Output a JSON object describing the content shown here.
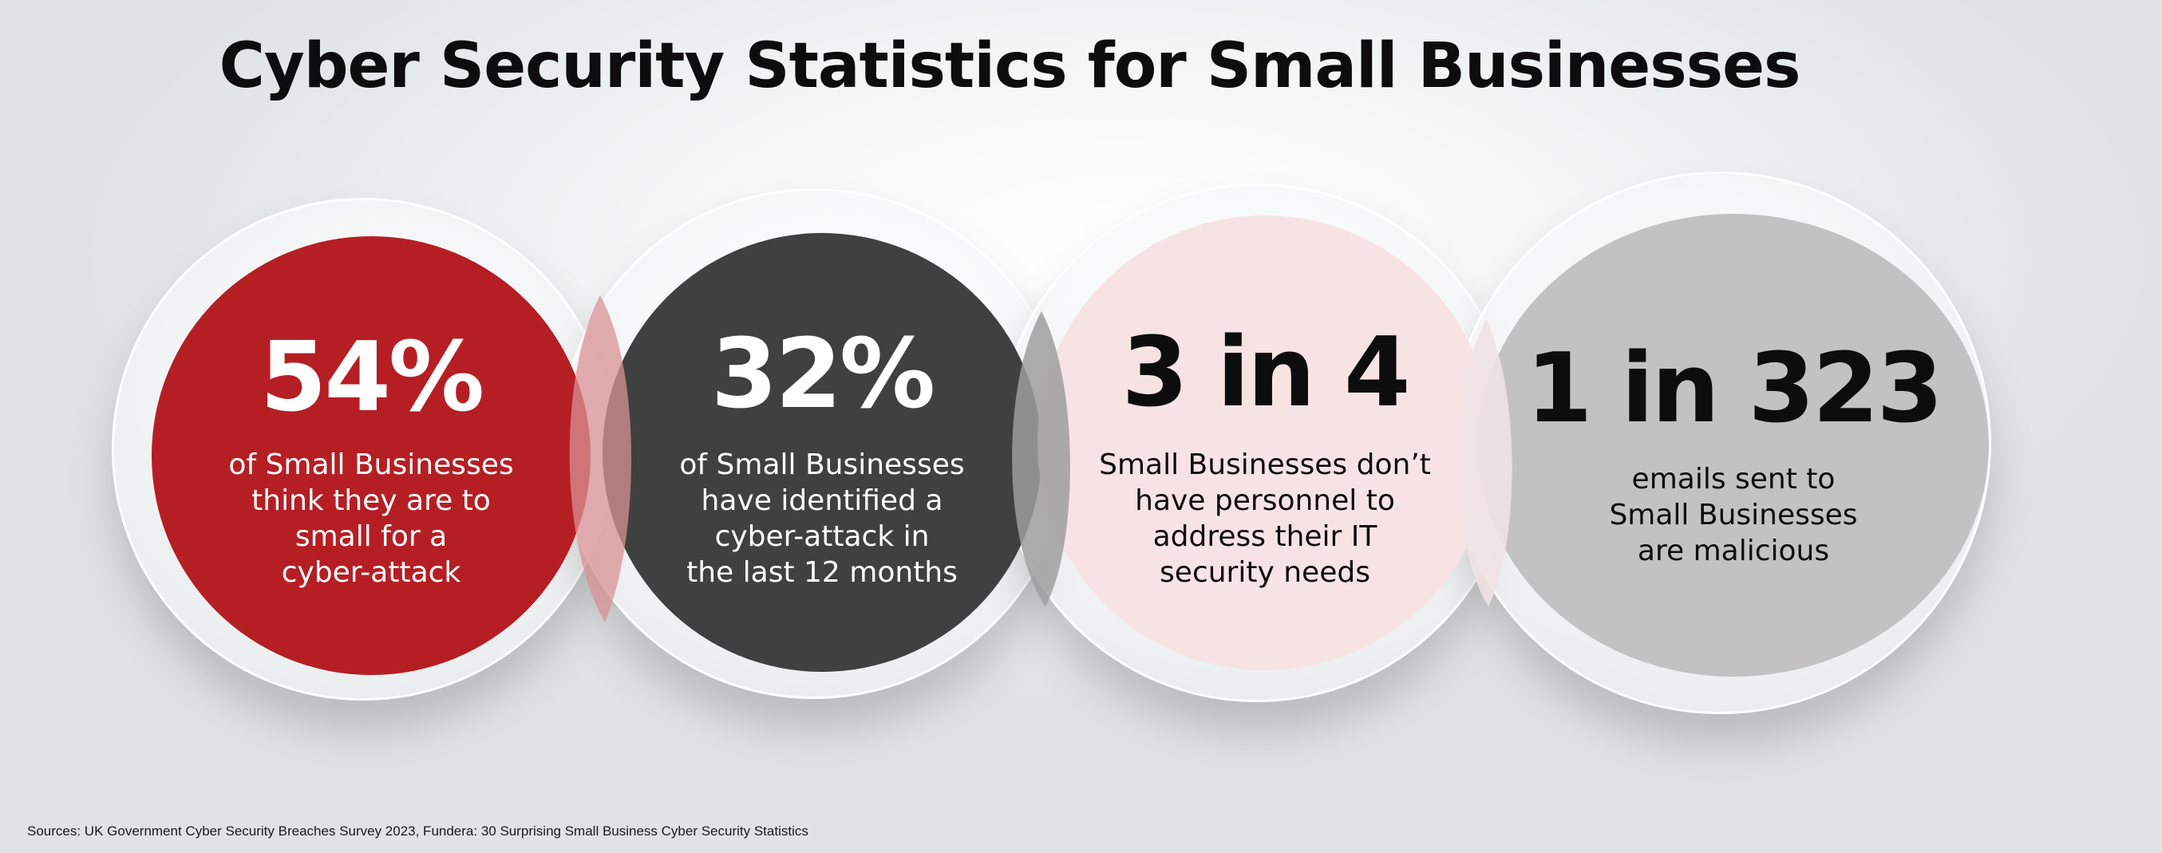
{
  "title": "Cyber Security Statistics for Small Businesses",
  "stats": [
    {
      "value": "54%",
      "description": "of Small Businesses\nthink they are to\nsmall for a\ncyber-attack",
      "color": "#b51f24",
      "text_color": "#ffffff"
    },
    {
      "value": "32%",
      "description": "of Small Businesses\nhave identified a\ncyber-attack in\nthe last 12 months",
      "color": "#3f4141",
      "text_color": "#ffffff"
    },
    {
      "value": "3 in 4",
      "description": "Small Businesses don’t\nhave  personnel to\naddress their IT\nsecurity needs",
      "color": "#f8e3e4",
      "text_color": "#0d0d0d"
    },
    {
      "value": "1 in 323",
      "description": "emails sent to\nSmall Businesses\nare malicious",
      "color": "#c2c2c2",
      "text_color": "#0d0d0d"
    }
  ],
  "sources": "Sources: UK Government Cyber Security Breaches Survey 2023, Fundera: 30 Surprising Small Business Cyber Security Statistics"
}
